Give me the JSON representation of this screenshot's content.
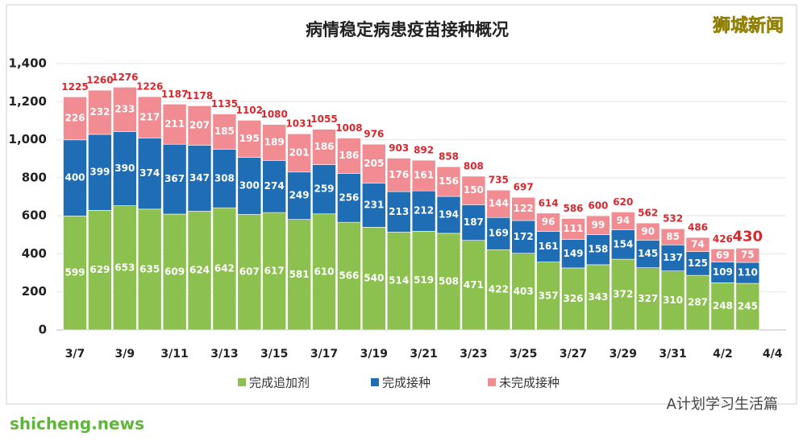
{
  "chart_data": {
    "type": "stacked-bar",
    "title": "病情稳定病患疫苗接种概况",
    "categories": [
      "3/7",
      null,
      "3/9",
      null,
      "3/11",
      null,
      "3/13",
      null,
      "3/15",
      null,
      "3/17",
      null,
      "3/19",
      null,
      "3/21",
      null,
      "3/23",
      null,
      "3/25",
      null,
      "3/27",
      null,
      "3/29",
      null,
      "3/31",
      null,
      "4/2",
      null,
      "4/4"
    ],
    "series": [
      {
        "name": "完成追加剂",
        "color": "#8cc04f",
        "values": [
          599,
          629,
          653,
          635,
          609,
          624,
          642,
          607,
          617,
          581,
          610,
          566,
          540,
          514,
          519,
          508,
          471,
          422,
          403,
          357,
          326,
          343,
          372,
          327,
          310,
          287,
          248,
          245,
          null
        ]
      },
      {
        "name": "完成接种",
        "color": "#1f6db5",
        "values": [
          400,
          399,
          390,
          374,
          367,
          347,
          308,
          300,
          274,
          249,
          259,
          256,
          231,
          213,
          212,
          194,
          187,
          169,
          172,
          161,
          149,
          158,
          154,
          145,
          137,
          125,
          109,
          110,
          null
        ]
      },
      {
        "name": "未完成接种",
        "color": "#f08c92",
        "values": [
          226,
          232,
          233,
          217,
          211,
          207,
          185,
          195,
          189,
          201,
          186,
          186,
          205,
          176,
          161,
          156,
          150,
          144,
          122,
          96,
          111,
          99,
          94,
          90,
          85,
          74,
          69,
          75,
          null
        ]
      }
    ],
    "totals": [
      1225,
      1260,
      1276,
      1226,
      1187,
      1178,
      1135,
      1102,
      1080,
      1031,
      1055,
      1008,
      976,
      903,
      892,
      858,
      808,
      735,
      697,
      614,
      586,
      600,
      620,
      562,
      532,
      486,
      426,
      430,
      null
    ],
    "total_color": "#d9262c",
    "ylim": [
      0,
      1400
    ],
    "yticks": [
      0,
      200,
      400,
      600,
      800,
      {
        "value": 1000,
        "label": "1,000"
      },
      {
        "value": 1200,
        "label": "1,200"
      },
      {
        "value": 1400,
        "label": "1,400"
      }
    ],
    "grid": true
  },
  "watermark": "狮城新闻",
  "footer_brand": "A计划学习生活篇",
  "site": "shicheng.news"
}
